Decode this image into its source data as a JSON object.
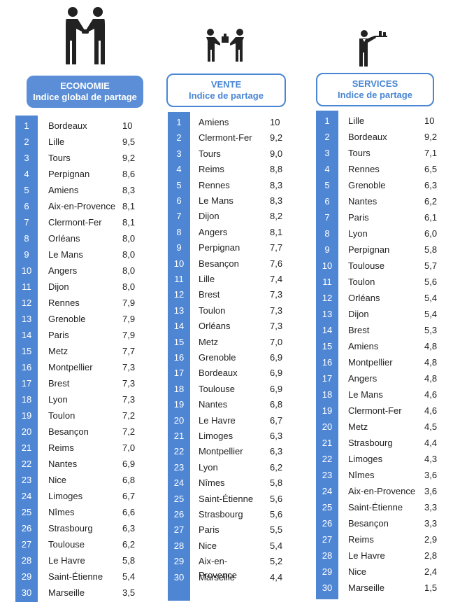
{
  "columns": [
    {
      "id": "economie",
      "icon": "handshake-icon",
      "header_line1": "ECONOMIE",
      "header_line2": "Indice global de partage",
      "rows": [
        {
          "rank": "1",
          "city": "Bordeaux",
          "score": "10"
        },
        {
          "rank": "2",
          "city": "Lille",
          "score": "9,5"
        },
        {
          "rank": "3",
          "city": "Tours",
          "score": "9,2"
        },
        {
          "rank": "4",
          "city": "Perpignan",
          "score": "8,6"
        },
        {
          "rank": "5",
          "city": "Amiens",
          "score": "8,3"
        },
        {
          "rank": "6",
          "city": "Aix-en-Provence",
          "score": "8,1"
        },
        {
          "rank": "7",
          "city": "Clermont-Fer",
          "score": "8,1"
        },
        {
          "rank": "8",
          "city": "Orléans",
          "score": "8,0"
        },
        {
          "rank": "9",
          "city": "Le Mans",
          "score": "8,0"
        },
        {
          "rank": "10",
          "city": "Angers",
          "score": "8,0"
        },
        {
          "rank": "11",
          "city": "Dijon",
          "score": "8,0"
        },
        {
          "rank": "12",
          "city": "Rennes",
          "score": "7,9"
        },
        {
          "rank": "13",
          "city": "Grenoble",
          "score": "7,9"
        },
        {
          "rank": "14",
          "city": "Paris",
          "score": "7,9"
        },
        {
          "rank": "15",
          "city": "Metz",
          "score": "7,7"
        },
        {
          "rank": "16",
          "city": "Montpellier",
          "score": "7,3"
        },
        {
          "rank": "17",
          "city": "Brest",
          "score": "7,3"
        },
        {
          "rank": "18",
          "city": "Lyon",
          "score": "7,3"
        },
        {
          "rank": "19",
          "city": "Toulon",
          "score": "7,2"
        },
        {
          "rank": "20",
          "city": "Besançon",
          "score": "7,2"
        },
        {
          "rank": "21",
          "city": "Reims",
          "score": "7,0"
        },
        {
          "rank": "22",
          "city": "Nantes",
          "score": "6,9"
        },
        {
          "rank": "23",
          "city": "Nice",
          "score": "6,8"
        },
        {
          "rank": "24",
          "city": "Limoges",
          "score": "6,7"
        },
        {
          "rank": "25",
          "city": "Nîmes",
          "score": "6,6"
        },
        {
          "rank": "26",
          "city": "Strasbourg",
          "score": "6,3"
        },
        {
          "rank": "27",
          "city": "Toulouse",
          "score": "6,2"
        },
        {
          "rank": "28",
          "city": "Le Havre",
          "score": "5,8"
        },
        {
          "rank": "29",
          "city": "Saint-Étienne",
          "score": "5,4"
        },
        {
          "rank": "30",
          "city": "Marseille",
          "score": "3,5"
        }
      ]
    },
    {
      "id": "vente",
      "icon": "exchange-icon",
      "header_line1": "VENTE",
      "header_line2": "Indice de partage",
      "rows": [
        {
          "rank": "1",
          "city": "Amiens",
          "score": "10"
        },
        {
          "rank": "2",
          "city": "Clermont-Fer",
          "score": "9,2"
        },
        {
          "rank": "3",
          "city": "Tours",
          "score": "9,0"
        },
        {
          "rank": "4",
          "city": "Reims",
          "score": "8,8"
        },
        {
          "rank": "5",
          "city": "Rennes",
          "score": "8,3"
        },
        {
          "rank": "6",
          "city": "Le Mans",
          "score": "8,3"
        },
        {
          "rank": "7",
          "city": "Dijon",
          "score": "8,2"
        },
        {
          "rank": "8",
          "city": "Angers",
          "score": "8,1"
        },
        {
          "rank": "9",
          "city": "Perpignan",
          "score": "7,7"
        },
        {
          "rank": "10",
          "city": "Besançon",
          "score": "7,6"
        },
        {
          "rank": "11",
          "city": "Lille",
          "score": "7,4"
        },
        {
          "rank": "12",
          "city": "Brest",
          "score": "7,3"
        },
        {
          "rank": "13",
          "city": "Toulon",
          "score": "7,3"
        },
        {
          "rank": "14",
          "city": "Orléans",
          "score": "7,3"
        },
        {
          "rank": "15",
          "city": "Metz",
          "score": "7,0"
        },
        {
          "rank": "16",
          "city": "Grenoble",
          "score": "6,9"
        },
        {
          "rank": "17",
          "city": "Bordeaux",
          "score": "6,9"
        },
        {
          "rank": "18",
          "city": "Toulouse",
          "score": "6,9"
        },
        {
          "rank": "19",
          "city": "Nantes",
          "score": "6,8"
        },
        {
          "rank": "20",
          "city": "Le Havre",
          "score": "6,7"
        },
        {
          "rank": "21",
          "city": "Limoges",
          "score": "6,3"
        },
        {
          "rank": "22",
          "city": "Montpellier",
          "score": "6,3"
        },
        {
          "rank": "23",
          "city": "Lyon",
          "score": "6,2"
        },
        {
          "rank": "24",
          "city": "Nîmes",
          "score": "5,8"
        },
        {
          "rank": "25",
          "city": "Saint-Étienne",
          "score": "5,6"
        },
        {
          "rank": "26",
          "city": "Strasbourg",
          "score": "5,6"
        },
        {
          "rank": "27",
          "city": "Paris",
          "score": "5,5"
        },
        {
          "rank": "28",
          "city": "Nice",
          "score": "5,4"
        },
        {
          "rank": "29",
          "city": "Aix-en-",
          "city_line2": "Provence",
          "score": "5,2"
        },
        {
          "rank": "30",
          "city": "Marseille",
          "score": "4,4"
        }
      ]
    },
    {
      "id": "services",
      "icon": "waiter-icon",
      "header_line1": "SERVICES",
      "header_line2": "Indice de partage",
      "rows": [
        {
          "rank": "1",
          "city": "Lille",
          "score": "10"
        },
        {
          "rank": "2",
          "city": "Bordeaux",
          "score": "9,2"
        },
        {
          "rank": "3",
          "city": "Tours",
          "score": "7,1"
        },
        {
          "rank": "4",
          "city": "Rennes",
          "score": "6,5"
        },
        {
          "rank": "5",
          "city": "Grenoble",
          "score": "6,3"
        },
        {
          "rank": "6",
          "city": "Nantes",
          "score": "6,2"
        },
        {
          "rank": "7",
          "city": "Paris",
          "score": "6,1"
        },
        {
          "rank": "8",
          "city": "Lyon",
          "score": "6,0"
        },
        {
          "rank": "9",
          "city": "Perpignan",
          "score": "5,8"
        },
        {
          "rank": "10",
          "city": "Toulouse",
          "score": "5,7"
        },
        {
          "rank": "11",
          "city": "Toulon",
          "score": "5,6"
        },
        {
          "rank": "12",
          "city": "Orléans",
          "score": "5,4"
        },
        {
          "rank": "13",
          "city": "Dijon",
          "score": "5,4"
        },
        {
          "rank": "14",
          "city": "Brest",
          "score": "5,3"
        },
        {
          "rank": "15",
          "city": "Amiens",
          "score": "4,8"
        },
        {
          "rank": "16",
          "city": "Montpellier",
          "score": "4,8"
        },
        {
          "rank": "17",
          "city": "Angers",
          "score": "4,8"
        },
        {
          "rank": "18",
          "city": "Le Mans",
          "score": "4,6"
        },
        {
          "rank": "19",
          "city": "Clermont-Fer",
          "score": "4,6"
        },
        {
          "rank": "20",
          "city": "Metz",
          "score": "4,5"
        },
        {
          "rank": "21",
          "city": "Strasbourg",
          "score": "4,4"
        },
        {
          "rank": "22",
          "city": "Limoges",
          "score": "4,3"
        },
        {
          "rank": "23",
          "city": "Nîmes",
          "score": "3,6"
        },
        {
          "rank": "24",
          "city": "Aix-en-Provence",
          "score": "3,6"
        },
        {
          "rank": "25",
          "city": "Saint-Étienne",
          "score": "3,3"
        },
        {
          "rank": "26",
          "city": "Besançon",
          "score": "3,3"
        },
        {
          "rank": "27",
          "city": "Reims",
          "score": "2,9"
        },
        {
          "rank": "28",
          "city": "Le Havre",
          "score": "2,8"
        },
        {
          "rank": "29",
          "city": "Nice",
          "score": "2,4"
        },
        {
          "rank": "30",
          "city": "Marseille",
          "score": "1,5"
        }
      ]
    }
  ]
}
